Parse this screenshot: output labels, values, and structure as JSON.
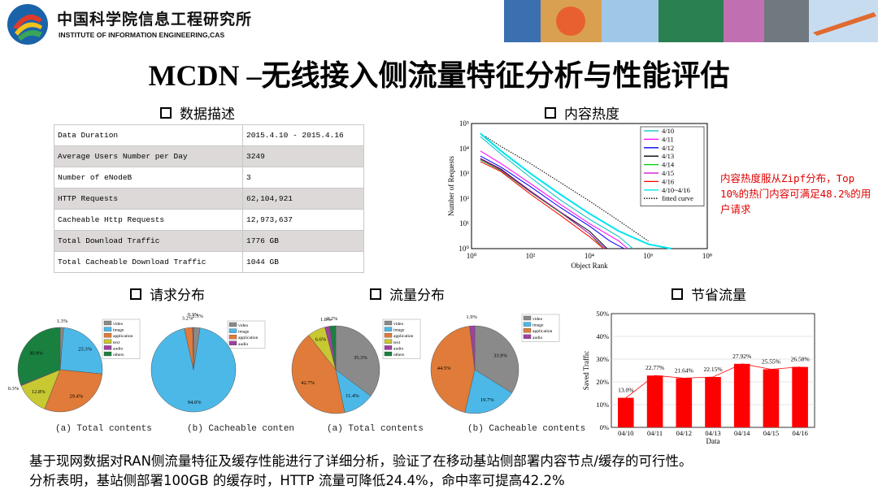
{
  "header": {
    "institute_cn": "中国科学院信息工程研究所",
    "institute_en": "INSTITUTE OF INFORMATION ENGINEERING,CAS"
  },
  "title": "MCDN –无线接入侧流量特征分析与性能评估",
  "sections": {
    "data_desc": "数据描述",
    "popularity": "内容热度",
    "request_dist": "请求分布",
    "traffic_dist": "流量分布",
    "saved_traffic": "节省流量"
  },
  "data_table": [
    {
      "key": "Data Duration",
      "value": "2015.4.10 - 2015.4.16"
    },
    {
      "key": "Average Users Number per Day",
      "value": "3249"
    },
    {
      "key": "Number of eNodeB",
      "value": "3"
    },
    {
      "key": "HTTP Requests",
      "value": "62,104,921"
    },
    {
      "key": "Cacheable Http Requests",
      "value": "12,973,637"
    },
    {
      "key": "Total Download Traffic",
      "value": "1776 GB"
    },
    {
      "key": "Total Cacheable Download Traffic",
      "value": "1044 GB"
    }
  ],
  "popularity_note": "内容热度服从Zipf分布，Top 10%的热门内容可满足48.2%的用户请求",
  "summary": {
    "line1": "基于现网数据对RAN侧流量特征及缓存性能进行了详细分析，验证了在移动基站侧部署内容节点/缓存的可行性。",
    "line2": "分析表明，基站侧部署100GB 的缓存时，HTTP 流量可降低24.4%，命中率可提高42.2%"
  },
  "captions": {
    "req_total": "(a)  Total contents",
    "req_cache": "(b)  Cacheable conten",
    "trf_total": "(a)  Total contents",
    "trf_cache": "(b)  Cacheable contents"
  },
  "chart_data": [
    {
      "type": "line",
      "title": "",
      "xlabel": "Object Rank",
      "ylabel": "Number of Requests",
      "xscale": "log",
      "yscale": "log",
      "xlim": [
        1,
        100000000
      ],
      "ylim": [
        1,
        100000
      ],
      "x_ticks": [
        "10⁰",
        "10²",
        "10⁴",
        "10⁶",
        "10⁸"
      ],
      "y_ticks": [
        "10⁰",
        "10¹",
        "10²",
        "10³",
        "10⁴",
        "10⁵"
      ],
      "legend_position": "top-right",
      "series": [
        {
          "name": "4/10",
          "color": "#00c0c0",
          "x": [
            2,
            10,
            100,
            1000,
            10000,
            100000,
            300000
          ],
          "y": [
            30000,
            6000,
            700,
            90,
            15,
            3,
            1
          ]
        },
        {
          "name": "4/11",
          "color": "#ff00ff",
          "x": [
            2,
            10,
            100,
            1000,
            10000,
            100000,
            200000
          ],
          "y": [
            8000,
            2500,
            400,
            60,
            10,
            2,
            1
          ]
        },
        {
          "name": "4/12",
          "color": "#0000ff",
          "x": [
            2,
            10,
            100,
            1000,
            10000,
            50000,
            150000
          ],
          "y": [
            5000,
            1800,
            300,
            45,
            8,
            2,
            1
          ]
        },
        {
          "name": "4/13",
          "color": "#000000",
          "x": [
            2,
            10,
            100,
            1000,
            10000,
            40000
          ],
          "y": [
            4000,
            1500,
            200,
            30,
            5,
            1
          ]
        },
        {
          "name": "4/14",
          "color": "#00cc00",
          "x": [
            2,
            10,
            100,
            1000,
            10000,
            30000
          ],
          "y": [
            3500,
            1300,
            180,
            28,
            4,
            1
          ]
        },
        {
          "name": "4/15",
          "color": "#cc00cc",
          "x": [
            2,
            10,
            100,
            1000,
            10000,
            35000
          ],
          "y": [
            3800,
            1400,
            190,
            30,
            4,
            1
          ]
        },
        {
          "name": "4/16",
          "color": "#ff0000",
          "x": [
            2,
            10,
            100,
            1000,
            10000,
            30000
          ],
          "y": [
            3000,
            1200,
            150,
            22,
            3,
            1
          ]
        },
        {
          "name": "4/10~4/16",
          "color": "#00e5ee",
          "x": [
            2,
            10,
            100,
            1000,
            10000,
            100000,
            1000000,
            6000000
          ],
          "y": [
            40000,
            8000,
            1000,
            150,
            25,
            5,
            1.5,
            1
          ]
        },
        {
          "name": "fitted curve",
          "color": "#000000",
          "x": [
            3,
            10,
            100,
            1000,
            10000,
            100000,
            1000000
          ],
          "y": [
            30000,
            12000,
            2500,
            450,
            80,
            13,
            2
          ]
        }
      ]
    },
    {
      "type": "pie",
      "title": "",
      "legend": [
        "video",
        "image",
        "application",
        "text",
        "audio",
        "others"
      ],
      "labels": [
        "1.3%",
        "25.3%",
        "29.4%",
        "12.8%",
        "0.3%",
        "30.9%"
      ],
      "values": [
        1.3,
        25.3,
        29.4,
        12.8,
        0.3,
        30.9
      ],
      "colors": [
        "#8a8a8a",
        "#4cb8e8",
        "#e07b39",
        "#c8c832",
        "#a040a0",
        "#1a8040"
      ]
    },
    {
      "type": "pie",
      "title": "",
      "legend": [
        "video",
        "image",
        "application",
        "audio"
      ],
      "labels": [
        "2.5%",
        "94.0%",
        "3.2%",
        "0.3%"
      ],
      "values": [
        2.5,
        94.0,
        3.2,
        0.3
      ],
      "colors": [
        "#8a8a8a",
        "#4cb8e8",
        "#e07b39",
        "#a040a0"
      ]
    },
    {
      "type": "pie",
      "title": "",
      "legend": [
        "video",
        "image",
        "application",
        "text",
        "audio",
        "others"
      ],
      "labels": [
        "35.3%",
        "11.4%",
        "42.7%",
        "6.6%",
        "1.8%",
        "2.2%"
      ],
      "values": [
        35.3,
        11.4,
        42.7,
        6.6,
        1.8,
        2.2
      ],
      "colors": [
        "#8a8a8a",
        "#4cb8e8",
        "#e07b39",
        "#c8c832",
        "#a040a0",
        "#1a8040"
      ]
    },
    {
      "type": "pie",
      "title": "",
      "legend": [
        "video",
        "image",
        "application",
        "audio"
      ],
      "labels": [
        "33.9%",
        "19.7%",
        "44.5%",
        "1.9%"
      ],
      "values": [
        33.9,
        19.7,
        44.5,
        1.9
      ],
      "colors": [
        "#8a8a8a",
        "#4cb8e8",
        "#e07b39",
        "#a040a0"
      ]
    },
    {
      "type": "bar",
      "title": "",
      "xlabel": "Data",
      "ylabel": "Saved Traffic",
      "categories": [
        "04/10",
        "04/11",
        "04/12",
        "04/13",
        "04/14",
        "04/15",
        "04/16"
      ],
      "values": [
        13.0,
        22.77,
        21.64,
        22.15,
        27.92,
        25.55,
        26.58
      ],
      "labels": [
        "13.0%",
        "22.77%",
        "21.64%",
        "22.15%",
        "27.92%",
        "25.55%",
        "26.58%"
      ],
      "ylim": [
        0,
        50
      ],
      "y_ticks": [
        "0%",
        "10%",
        "20%",
        "30%",
        "40%",
        "50%"
      ],
      "bar_color": "#ff0000",
      "line_color": "#ff0000"
    }
  ]
}
